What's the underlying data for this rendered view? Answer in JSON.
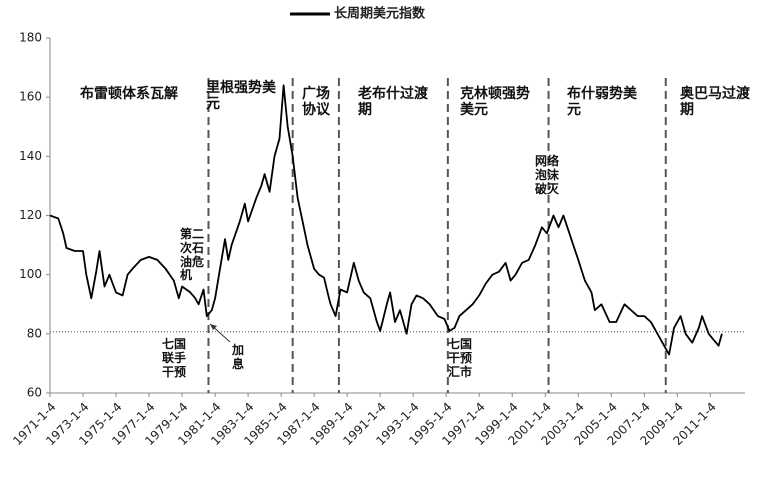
{
  "chart_data": {
    "type": "line",
    "legend": "长周期美元指数",
    "series": [
      {
        "name": "长周期美元指数",
        "color": "#000000",
        "x": [
          1971.0,
          1971.5,
          1971.8,
          1972.0,
          1972.5,
          1973.0,
          1973.2,
          1973.5,
          1973.8,
          1974.0,
          1974.3,
          1974.6,
          1975.0,
          1975.4,
          1975.7,
          1976.0,
          1976.5,
          1977.0,
          1977.5,
          1978.0,
          1978.5,
          1978.8,
          1979.0,
          1979.5,
          1979.8,
          1980.0,
          1980.3,
          1980.5,
          1980.8,
          1981.0,
          1981.3,
          1981.6,
          1981.8,
          1982.0,
          1982.5,
          1982.8,
          1983.0,
          1983.5,
          1983.8,
          1984.0,
          1984.3,
          1984.6,
          1984.9,
          1985.15,
          1985.4,
          1985.7,
          1986.0,
          1986.3,
          1986.6,
          1987.0,
          1987.3,
          1987.6,
          1987.9,
          1988.0,
          1988.3,
          1988.6,
          1989.0,
          1989.4,
          1989.7,
          1990.0,
          1990.4,
          1990.8,
          1991.0,
          1991.4,
          1991.6,
          1991.9,
          1992.2,
          1992.6,
          1992.9,
          1993.2,
          1993.6,
          1994.0,
          1994.5,
          1994.9,
          1995.2,
          1995.5,
          1995.8,
          1996.2,
          1996.6,
          1997.0,
          1997.4,
          1997.8,
          1998.2,
          1998.6,
          1998.9,
          1999.2,
          1999.6,
          2000.0,
          2000.4,
          2000.8,
          2001.1,
          2001.5,
          2001.8,
          2002.1,
          2002.4,
          2002.7,
          2003.0,
          2003.4,
          2003.8,
          2004.0,
          2004.4,
          2004.9,
          2005.3,
          2005.8,
          2006.2,
          2006.6,
          2007.0,
          2007.4,
          2007.8,
          2008.2,
          2008.5,
          2008.8,
          2009.2,
          2009.5,
          2009.9,
          2010.3,
          2010.5,
          2010.9,
          2011.2,
          2011.5,
          2011.7
        ],
        "values": [
          120,
          119,
          114,
          109,
          108,
          108,
          100,
          92,
          101,
          108,
          96,
          100,
          94,
          93,
          100,
          102,
          105,
          106,
          105,
          102,
          98,
          92,
          96,
          94,
          92,
          90,
          95,
          86,
          88,
          92,
          102,
          112,
          105,
          110,
          118,
          124,
          118,
          126,
          130,
          134,
          128,
          140,
          146,
          164,
          150,
          140,
          126,
          118,
          110,
          102,
          100,
          99,
          92,
          90,
          86,
          95,
          94,
          104,
          98,
          94,
          92,
          84,
          81,
          90,
          94,
          84,
          88,
          80,
          90,
          93,
          92,
          90,
          86,
          85,
          81,
          82,
          86,
          88,
          90,
          93,
          97,
          100,
          101,
          104,
          98,
          100,
          104,
          105,
          110,
          116,
          114,
          120,
          116,
          120,
          115,
          110,
          105,
          98,
          94,
          88,
          90,
          84,
          84,
          90,
          88,
          86,
          86,
          84,
          80,
          76,
          73,
          82,
          86,
          80,
          77,
          82,
          86,
          80,
          78,
          76,
          80
        ]
      }
    ],
    "xlim": [
      1971,
      2013.1
    ],
    "xticks": [
      {
        "value": 1971,
        "label": "1971-1-4"
      },
      {
        "value": 1973,
        "label": "1973-1-4"
      },
      {
        "value": 1975,
        "label": "1975-1-4"
      },
      {
        "value": 1977,
        "label": "1977-1-4"
      },
      {
        "value": 1979,
        "label": "1979-1-4"
      },
      {
        "value": 1981,
        "label": "1981-1-4"
      },
      {
        "value": 1983,
        "label": "1983-1-4"
      },
      {
        "value": 1985,
        "label": "1985-1-4"
      },
      {
        "value": 1987,
        "label": "1987-1-4"
      },
      {
        "value": 1989,
        "label": "1989-1-4"
      },
      {
        "value": 1991,
        "label": "1991-1-4"
      },
      {
        "value": 1993,
        "label": "1993-1-4"
      },
      {
        "value": 1995,
        "label": "1995-1-4"
      },
      {
        "value": 1997,
        "label": "1997-1-4"
      },
      {
        "value": 1999,
        "label": "1999-1-4"
      },
      {
        "value": 2001,
        "label": "2001-1-4"
      },
      {
        "value": 2003,
        "label": "2003-1-4"
      },
      {
        "value": 2005,
        "label": "2005-1-4"
      },
      {
        "value": 2007,
        "label": "2007-1-4"
      },
      {
        "value": 2009,
        "label": "2009-1-4"
      },
      {
        "value": 2011,
        "label": "2011-1-4"
      }
    ],
    "ylim": [
      60,
      180
    ],
    "yticks": [
      60,
      80,
      100,
      120,
      140,
      160,
      180
    ],
    "reference_line": 80.7,
    "dividers": [
      1980.6,
      1985.7,
      1988.5,
      1995.1,
      2001.2,
      2008.3
    ],
    "annotations": [
      "布雷顿体系瓦解",
      "里根强势美元",
      "广场协议",
      "老布什过渡期",
      "克林顿强势美元",
      "布什弱势美元",
      "奥巴马过渡期",
      "第二次石油危机",
      "七国联手干预",
      "加息",
      "七国干预汇市",
      "网络泡沫破灭"
    ]
  }
}
